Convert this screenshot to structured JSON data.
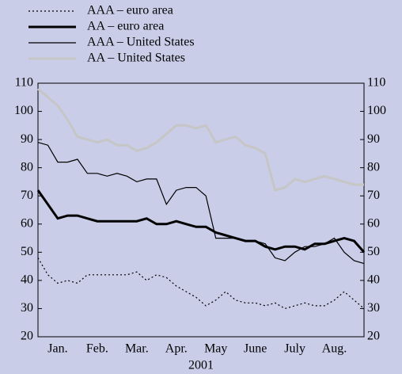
{
  "chart_data": {
    "type": "line",
    "xlabel": "2001",
    "categories": [
      null,
      null,
      "Jan.",
      null,
      null,
      null,
      "Feb.",
      null,
      null,
      null,
      "Mar.",
      null,
      null,
      null,
      "Apr.",
      null,
      null,
      null,
      "May",
      null,
      null,
      null,
      "June",
      null,
      null,
      null,
      "July",
      null,
      null,
      null,
      "Aug.",
      null,
      null,
      null
    ],
    "series": [
      {
        "name": "AAA – euro area",
        "color": "#000000",
        "width": 1.2,
        "dash": "dotted",
        "values": [
          48,
          42,
          39,
          40,
          39,
          42,
          42,
          42,
          42,
          42,
          43,
          40,
          42,
          41,
          38,
          36,
          34,
          31,
          33,
          36,
          33,
          32,
          32,
          31,
          32,
          30,
          31,
          32,
          31,
          31,
          33,
          36,
          33,
          30
        ]
      },
      {
        "name": "AA – euro area",
        "color": "#000000",
        "width": 3,
        "dash": "solid",
        "values": [
          72,
          67,
          62,
          63,
          63,
          62,
          61,
          61,
          61,
          61,
          61,
          62,
          60,
          60,
          61,
          60,
          59,
          59,
          57,
          56,
          55,
          54,
          54,
          52,
          51,
          52,
          52,
          51,
          53,
          53,
          54,
          55,
          54,
          50
        ]
      },
      {
        "name": "AAA – United States",
        "color": "#000000",
        "width": 1.2,
        "dash": "solid",
        "values": [
          89,
          88,
          82,
          82,
          83,
          78,
          78,
          77,
          78,
          77,
          75,
          76,
          76,
          67,
          72,
          73,
          73,
          70,
          55,
          55,
          55,
          54,
          54,
          53,
          48,
          47,
          50,
          52,
          52,
          53,
          55,
          50,
          47,
          46
        ]
      },
      {
        "name": "AA – United States",
        "color": "#c6c6c6",
        "width": 3,
        "dash": "solid",
        "values": [
          108,
          105,
          102,
          97,
          91,
          90,
          89,
          90,
          88,
          88,
          86,
          87,
          89,
          92,
          95,
          95,
          94,
          95,
          89,
          90,
          91,
          88,
          87,
          85,
          72,
          73,
          76,
          75,
          76,
          77,
          76,
          75,
          74,
          74
        ]
      }
    ],
    "ylim": [
      20,
      110
    ],
    "yticks": [
      20,
      30,
      40,
      50,
      60,
      70,
      80,
      90,
      100,
      110
    ]
  }
}
